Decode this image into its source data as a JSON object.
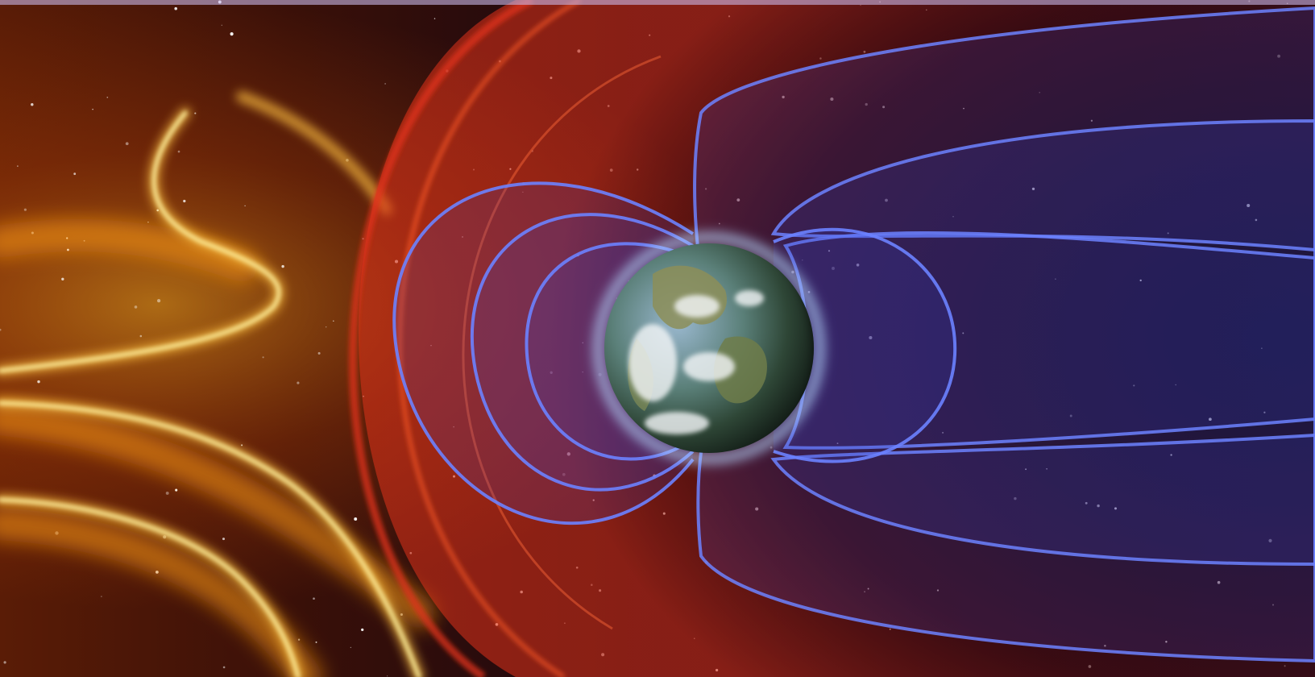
{
  "scene": {
    "subject": "earth-magnetosphere",
    "colors": {
      "space": "#0b0610",
      "space_right": "#120a1c",
      "solar_wind_core": "#fff2a0",
      "solar_wind_glow": "#ffb020",
      "solar_wind_deep": "#c24a08",
      "bow_shock": "#e0321a",
      "bow_shock_inner": "#ff5a2a",
      "field_line": "#6c82ff",
      "field_fill": "#3a44c8",
      "earth_ocean": "#4b7aa8",
      "earth_land": "#7e8a55",
      "earth_cloud": "#f4f6f8",
      "earth_night": "#1b2a22",
      "atmosphere": "#9fc8ff"
    },
    "icons": [
      "earth-globe",
      "starfield"
    ]
  }
}
